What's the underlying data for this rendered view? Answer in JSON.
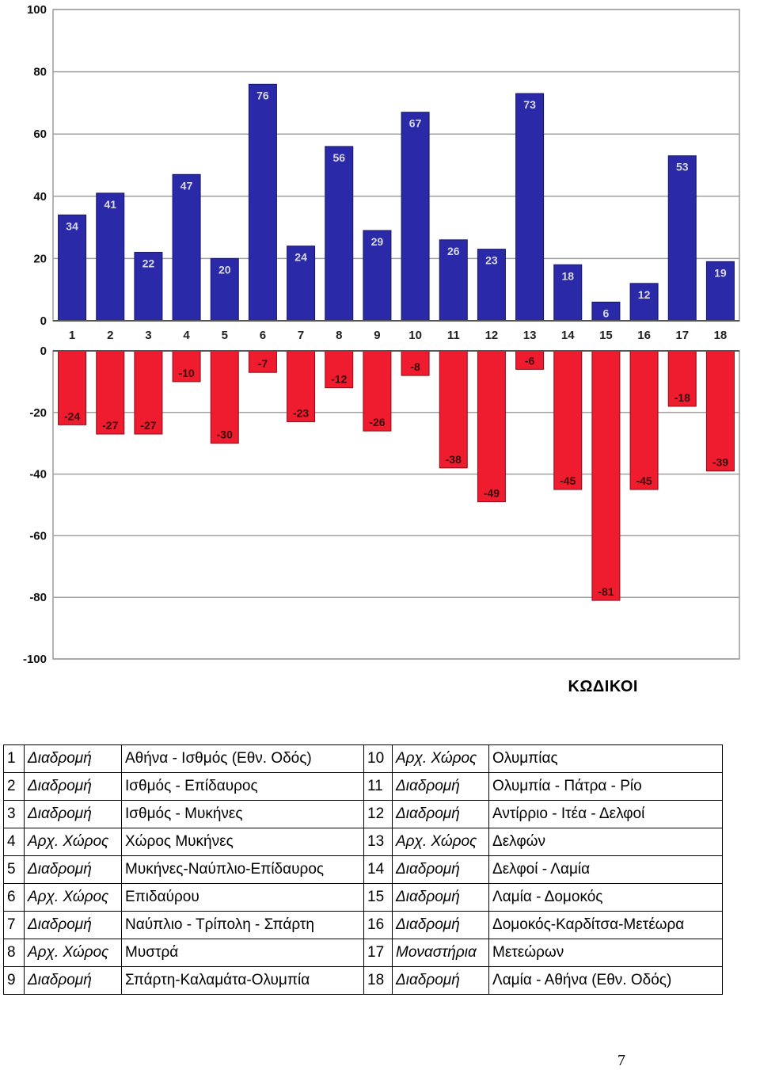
{
  "chart_data": [
    {
      "type": "bar",
      "categories": [
        "1",
        "2",
        "3",
        "4",
        "5",
        "6",
        "7",
        "8",
        "9",
        "10",
        "11",
        "12",
        "13",
        "14",
        "15",
        "16",
        "17",
        "18"
      ],
      "values": [
        34,
        41,
        22,
        47,
        20,
        76,
        24,
        56,
        29,
        67,
        26,
        23,
        73,
        18,
        6,
        12,
        53,
        19
      ],
      "ylim": [
        0,
        100
      ],
      "yticks": [
        0,
        20,
        40,
        60,
        80,
        100
      ],
      "grid": true,
      "bar_color": "#2a2aa8"
    },
    {
      "type": "bar",
      "values": [
        -24,
        -27,
        -27,
        -10,
        -30,
        -7,
        -23,
        -12,
        -26,
        -8,
        -38,
        -49,
        -6,
        -45,
        -81,
        -45,
        -18,
        -39
      ],
      "ylim": [
        -100,
        0
      ],
      "yticks": [
        0,
        -20,
        -40,
        -60,
        -80,
        -100
      ],
      "grid": true,
      "bar_color": "#ee1c2e"
    }
  ],
  "heading": "ΚΩΔΙΚΟΙ",
  "legend": {
    "rows": [
      {
        "n1": "1",
        "t1": "Διαδρομή",
        "d1": "Αθήνα - Ισθμός (Εθν. Οδός)",
        "n2": "10",
        "t2": "Αρχ. Χώρος",
        "d2": "Ολυμπίας"
      },
      {
        "n1": "2",
        "t1": "Διαδρομή",
        "d1": "Ισθμός - Επίδαυρος",
        "n2": "11",
        "t2": "Διαδρομή",
        "d2": "Ολυμπία - Πάτρα - Ρίο"
      },
      {
        "n1": "3",
        "t1": "Διαδρομή",
        "d1": "Ισθμός - Μυκήνες",
        "n2": "12",
        "t2": "Διαδρομή",
        "d2": "Αντίρριο - Ιτέα - Δελφοί"
      },
      {
        "n1": "4",
        "t1": "Αρχ. Χώρος",
        "d1": "Χώρος Μυκήνες",
        "n2": "13",
        "t2": "Αρχ. Χώρος",
        "d2": "Δελφών"
      },
      {
        "n1": "5",
        "t1": "Διαδρομή",
        "d1": "Μυκήνες-Ναύπλιο-Επίδαυρος",
        "n2": "14",
        "t2": "Διαδρομή",
        "d2": "Δελφοί - Λαμία"
      },
      {
        "n1": "6",
        "t1": "Αρχ. Χώρος",
        "d1": "Επιδαύρου",
        "n2": "15",
        "t2": "Διαδρομή",
        "d2": "Λαμία - Δομοκός"
      },
      {
        "n1": "7",
        "t1": "Διαδρομή",
        "d1": "Ναύπλιο - Τρίπολη - Σπάρτη",
        "n2": "16",
        "t2": "Διαδρομή",
        "d2": "Δομοκός-Καρδίτσα-Μετέωρα"
      },
      {
        "n1": "8",
        "t1": "Αρχ. Χώρος",
        "d1": "Μυστρά",
        "n2": "17",
        "t2": "Μοναστήρια",
        "d2": "Μετεώρων"
      },
      {
        "n1": "9",
        "t1": "Διαδρομή",
        "d1": "Σπάρτη-Καλαμάτα-Ολυμπία",
        "n2": "18",
        "t2": "Διαδρομή",
        "d2": "Λαμία - Αθήνα (Εθν. Οδός)"
      }
    ]
  },
  "page_number": "7"
}
